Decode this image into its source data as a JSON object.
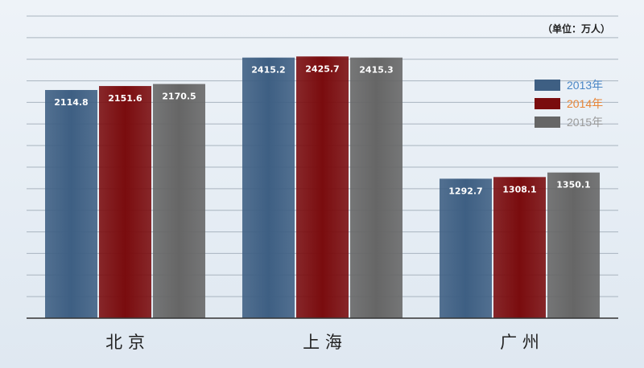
{
  "chart_data": {
    "type": "bar",
    "unit_label": "（单位：万人）",
    "categories": [
      "北京",
      "上海",
      "广州"
    ],
    "category_labels": [
      "北 京",
      "上 海",
      "广 州"
    ],
    "series": [
      {
        "name": "2013年",
        "values": [
          2114.8,
          2415.2,
          1292.7
        ],
        "color": "#3e5f83",
        "legend_text_color": "#4a86c5"
      },
      {
        "name": "2014年",
        "values": [
          2151.6,
          2425.7,
          1308.1
        ],
        "color": "#7a0c0e",
        "legend_text_color": "#e88536"
      },
      {
        "name": "2015年",
        "values": [
          2170.5,
          2415.3,
          1350.1
        ],
        "color": "#666666",
        "legend_text_color": "#9a9a9a"
      }
    ],
    "data_labels": [
      [
        "2114.8",
        "2415.2",
        "1292.7"
      ],
      [
        "2151.6",
        "2425.7",
        "1308.1"
      ],
      [
        "2170.5",
        "2415.3",
        "1350.1"
      ]
    ],
    "ylim": [
      0,
      2800
    ],
    "grid": true,
    "legend_position": "right"
  }
}
